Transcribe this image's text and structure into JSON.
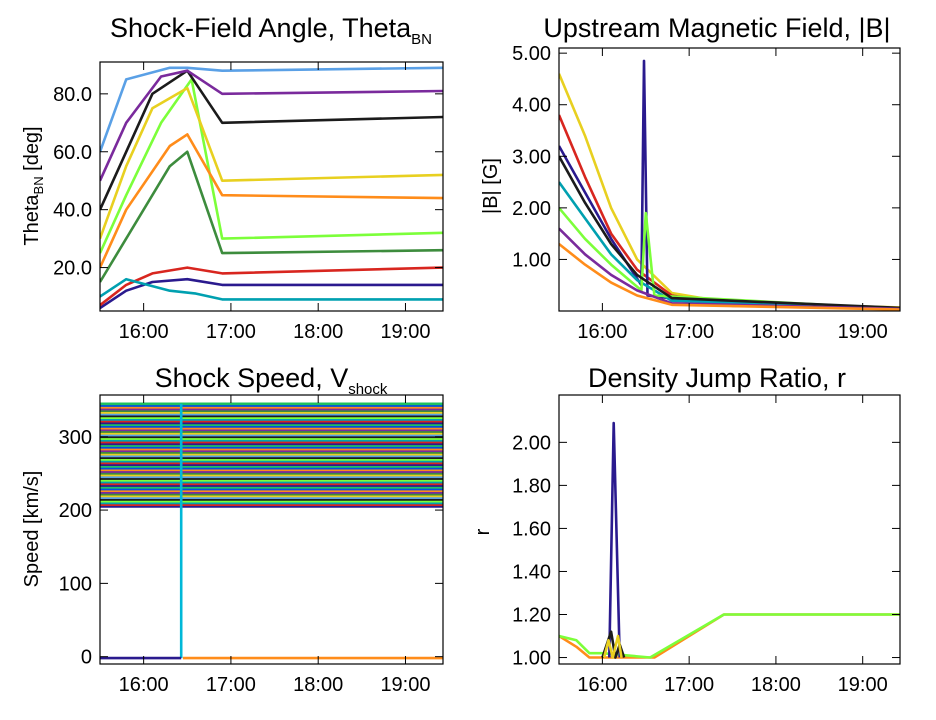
{
  "chart_data": [
    {
      "id": "theta",
      "type": "line",
      "title_main": "Shock-Field Angle, Theta",
      "title_sub": "BN",
      "ylabel_main": "Theta",
      "ylabel_sub": "BN",
      "ylabel_suffix": " [deg]",
      "xlim": [
        15.5,
        19.43
      ],
      "ylim": [
        5,
        91
      ],
      "xticks": [
        {
          "v": 16,
          "label": "16:00"
        },
        {
          "v": 17,
          "label": "17:00"
        },
        {
          "v": 18,
          "label": "18:00"
        },
        {
          "v": 19,
          "label": "19:00"
        }
      ],
      "yticks": [
        {
          "v": 20,
          "label": "20.0"
        },
        {
          "v": 40,
          "label": "40.0"
        },
        {
          "v": 60,
          "label": "60.0"
        },
        {
          "v": 80,
          "label": "80.0"
        }
      ],
      "series": [
        {
          "color": "#2a1a8e",
          "values": [
            [
              15.5,
              6
            ],
            [
              15.8,
              12
            ],
            [
              16.1,
              15
            ],
            [
              16.5,
              16
            ],
            [
              16.9,
              14
            ],
            [
              19.43,
              14
            ]
          ]
        },
        {
          "color": "#d8261f",
          "values": [
            [
              15.5,
              7
            ],
            [
              15.8,
              14
            ],
            [
              16.1,
              18
            ],
            [
              16.5,
              20
            ],
            [
              16.9,
              18
            ],
            [
              19.43,
              20
            ]
          ]
        },
        {
          "color": "#00a0b0",
          "values": [
            [
              15.5,
              10
            ],
            [
              15.8,
              16
            ],
            [
              16.3,
              12
            ],
            [
              16.6,
              11
            ],
            [
              16.9,
              9
            ],
            [
              19.43,
              9
            ]
          ]
        },
        {
          "color": "#7cff3a",
          "values": [
            [
              15.5,
              25
            ],
            [
              15.8,
              45
            ],
            [
              16.2,
              70
            ],
            [
              16.55,
              85
            ],
            [
              16.9,
              30
            ],
            [
              19.43,
              32
            ]
          ]
        },
        {
          "color": "#1b1b1b",
          "values": [
            [
              15.5,
              40
            ],
            [
              15.8,
              60
            ],
            [
              16.1,
              80
            ],
            [
              16.5,
              88
            ],
            [
              16.9,
              70
            ],
            [
              19.43,
              72
            ]
          ]
        },
        {
          "color": "#5aa0e6",
          "values": [
            [
              15.5,
              60
            ],
            [
              15.8,
              85
            ],
            [
              16.3,
              89
            ],
            [
              16.5,
              89
            ],
            [
              16.9,
              88
            ],
            [
              19.43,
              89
            ]
          ]
        },
        {
          "color": "#e8d020",
          "values": [
            [
              15.5,
              30
            ],
            [
              15.8,
              55
            ],
            [
              16.1,
              75
            ],
            [
              16.5,
              82
            ],
            [
              16.9,
              50
            ],
            [
              19.43,
              52
            ]
          ]
        },
        {
          "color": "#3d8c3d",
          "values": [
            [
              15.5,
              15
            ],
            [
              15.8,
              30
            ],
            [
              16.3,
              55
            ],
            [
              16.5,
              60
            ],
            [
              16.9,
              25
            ],
            [
              19.43,
              26
            ]
          ]
        },
        {
          "color": "#7a2a9c",
          "values": [
            [
              15.5,
              50
            ],
            [
              15.8,
              70
            ],
            [
              16.2,
              86
            ],
            [
              16.5,
              88
            ],
            [
              16.9,
              80
            ],
            [
              19.43,
              81
            ]
          ]
        },
        {
          "color": "#ff8c1a",
          "values": [
            [
              15.5,
              20
            ],
            [
              15.8,
              40
            ],
            [
              16.3,
              62
            ],
            [
              16.5,
              66
            ],
            [
              16.9,
              45
            ],
            [
              19.43,
              44
            ]
          ]
        }
      ]
    },
    {
      "id": "bfield",
      "type": "line",
      "title_main": "Upstream Magnetic Field, |B|",
      "ylabel_main": "|B| [G]",
      "xlim": [
        15.5,
        19.43
      ],
      "ylim": [
        0,
        5.1
      ],
      "xticks": [
        {
          "v": 16,
          "label": "16:00"
        },
        {
          "v": 17,
          "label": "17:00"
        },
        {
          "v": 18,
          "label": "18:00"
        },
        {
          "v": 19,
          "label": "19:00"
        }
      ],
      "yticks": [
        {
          "v": 1,
          "label": "1.00"
        },
        {
          "v": 2,
          "label": "2.00"
        },
        {
          "v": 3,
          "label": "3.00"
        },
        {
          "v": 4,
          "label": "4.00"
        },
        {
          "v": 5,
          "label": "5.00"
        }
      ],
      "series": [
        {
          "color": "#e8d020",
          "values": [
            [
              15.5,
              4.6
            ],
            [
              15.8,
              3.4
            ],
            [
              16.1,
              2.0
            ],
            [
              16.4,
              1.0
            ],
            [
              16.8,
              0.35
            ],
            [
              17.5,
              0.15
            ],
            [
              19.43,
              0.07
            ]
          ]
        },
        {
          "color": "#d8261f",
          "values": [
            [
              15.5,
              3.8
            ],
            [
              15.8,
              2.6
            ],
            [
              16.1,
              1.5
            ],
            [
              16.4,
              0.8
            ],
            [
              16.8,
              0.3
            ],
            [
              17.5,
              0.12
            ],
            [
              19.43,
              0.06
            ]
          ]
        },
        {
          "color": "#2a1a8e",
          "values": [
            [
              15.5,
              3.2
            ],
            [
              15.8,
              2.3
            ],
            [
              16.1,
              1.4
            ],
            [
              16.45,
              0.5
            ],
            [
              16.48,
              4.85
            ],
            [
              16.52,
              0.3
            ],
            [
              17.5,
              0.1
            ],
            [
              19.43,
              0.05
            ]
          ]
        },
        {
          "color": "#00a0b0",
          "values": [
            [
              15.5,
              2.5
            ],
            [
              15.8,
              1.8
            ],
            [
              16.1,
              1.1
            ],
            [
              16.4,
              0.6
            ],
            [
              16.8,
              0.2
            ],
            [
              19.43,
              0.05
            ]
          ]
        },
        {
          "color": "#7cff3a",
          "values": [
            [
              15.5,
              2.0
            ],
            [
              15.8,
              1.4
            ],
            [
              16.1,
              0.9
            ],
            [
              16.45,
              0.4
            ],
            [
              16.5,
              1.9
            ],
            [
              16.6,
              0.3
            ],
            [
              19.43,
              0.04
            ]
          ]
        },
        {
          "color": "#1b1b1b",
          "values": [
            [
              15.5,
              3.0
            ],
            [
              15.8,
              2.1
            ],
            [
              16.1,
              1.3
            ],
            [
              16.4,
              0.7
            ],
            [
              16.8,
              0.25
            ],
            [
              19.43,
              0.06
            ]
          ]
        },
        {
          "color": "#7a2a9c",
          "values": [
            [
              15.5,
              1.6
            ],
            [
              15.8,
              1.1
            ],
            [
              16.1,
              0.7
            ],
            [
              16.4,
              0.4
            ],
            [
              16.8,
              0.15
            ],
            [
              19.43,
              0.04
            ]
          ]
        },
        {
          "color": "#ff8c1a",
          "values": [
            [
              15.5,
              1.3
            ],
            [
              15.8,
              0.9
            ],
            [
              16.1,
              0.55
            ],
            [
              16.4,
              0.3
            ],
            [
              16.8,
              0.12
            ],
            [
              19.43,
              0.03
            ]
          ]
        }
      ]
    },
    {
      "id": "vshock",
      "type": "line",
      "title_main": "Shock Speed, V",
      "title_sub": "shock",
      "ylabel_main": "Speed [km/s]",
      "xlim": [
        15.5,
        19.43
      ],
      "ylim": [
        -10,
        357
      ],
      "xticks": [
        {
          "v": 16,
          "label": "16:00"
        },
        {
          "v": 17,
          "label": "17:00"
        },
        {
          "v": 18,
          "label": "18:00"
        },
        {
          "v": 19,
          "label": "19:00"
        }
      ],
      "yticks": [
        {
          "v": 0,
          "label": "0"
        },
        {
          "v": 100,
          "label": "100"
        },
        {
          "v": 200,
          "label": "200"
        },
        {
          "v": 300,
          "label": "300"
        }
      ],
      "bands": {
        "y_min": 205,
        "y_max": 345
      },
      "series": [
        {
          "color": "#00b8d8",
          "values": [
            [
              16.43,
              -2
            ],
            [
              16.43,
              345
            ]
          ]
        },
        {
          "color": "#ff8c1a",
          "values": [
            [
              16.45,
              -2
            ],
            [
              19.43,
              -2
            ]
          ]
        },
        {
          "color": "#2a1a8e",
          "values": [
            [
              15.5,
              -2
            ],
            [
              16.43,
              -2
            ]
          ]
        }
      ]
    },
    {
      "id": "density",
      "type": "line",
      "title_main": "Density Jump Ratio, r",
      "ylabel_main": "r",
      "xlim": [
        15.5,
        19.43
      ],
      "ylim": [
        0.97,
        2.22
      ],
      "xticks": [
        {
          "v": 16,
          "label": "16:00"
        },
        {
          "v": 17,
          "label": "17:00"
        },
        {
          "v": 18,
          "label": "18:00"
        },
        {
          "v": 19,
          "label": "19:00"
        }
      ],
      "yticks": [
        {
          "v": 1.0,
          "label": "1.00"
        },
        {
          "v": 1.2,
          "label": "1.20"
        },
        {
          "v": 1.4,
          "label": "1.40"
        },
        {
          "v": 1.6,
          "label": "1.60"
        },
        {
          "v": 1.8,
          "label": "1.80"
        },
        {
          "v": 2.0,
          "label": "2.00"
        }
      ],
      "series": [
        {
          "color": "#ff8c1a",
          "values": [
            [
              15.5,
              1.1
            ],
            [
              15.7,
              1.05
            ],
            [
              15.85,
              1.0
            ],
            [
              16.0,
              1.0
            ],
            [
              16.6,
              1.0
            ],
            [
              17.4,
              1.2
            ],
            [
              19.43,
              1.2
            ]
          ]
        },
        {
          "color": "#7cff3a",
          "values": [
            [
              15.5,
              1.1
            ],
            [
              15.7,
              1.08
            ],
            [
              15.85,
              1.02
            ],
            [
              16.0,
              1.02
            ],
            [
              16.55,
              1.0
            ],
            [
              17.4,
              1.2
            ],
            [
              19.43,
              1.2
            ]
          ]
        },
        {
          "color": "#2a1a8e",
          "values": [
            [
              16.08,
              1.0
            ],
            [
              16.13,
              2.09
            ],
            [
              16.2,
              1.0
            ]
          ]
        },
        {
          "color": "#1b1b1b",
          "values": [
            [
              16.0,
              1.0
            ],
            [
              16.1,
              1.12
            ],
            [
              16.15,
              1.0
            ],
            [
              16.2,
              1.06
            ],
            [
              16.25,
              1.0
            ]
          ]
        },
        {
          "color": "#e8d020",
          "values": [
            [
              16.02,
              1.0
            ],
            [
              16.07,
              1.08
            ],
            [
              16.12,
              1.0
            ],
            [
              16.18,
              1.1
            ],
            [
              16.22,
              1.0
            ]
          ]
        }
      ]
    }
  ]
}
